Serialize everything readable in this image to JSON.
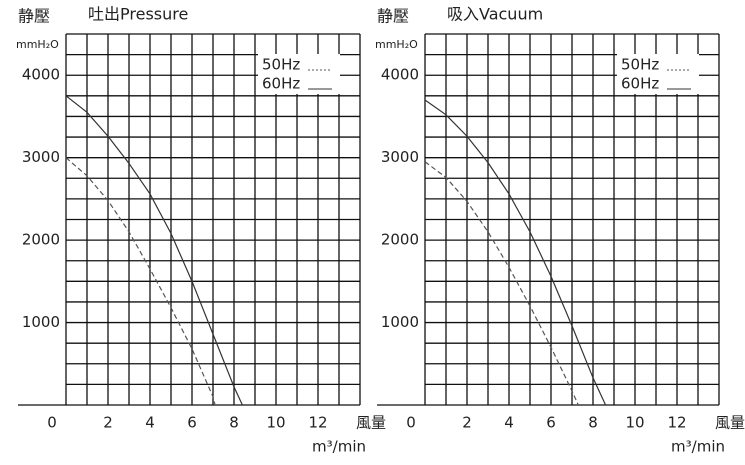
{
  "chart_data": [
    {
      "type": "line",
      "y_label": "静壓",
      "title": "吐出Pressure",
      "y_unit": "mmH₂O",
      "x_label": "風量",
      "x_unit": "m³/min",
      "xlim": [
        0,
        14
      ],
      "ylim": [
        0,
        4500
      ],
      "xticks": [
        0,
        2,
        4,
        6,
        8,
        10,
        12
      ],
      "yticks": [
        1000,
        2000,
        3000,
        4000
      ],
      "xgrid": [
        0,
        1,
        2,
        3,
        4,
        5,
        6,
        7,
        8,
        9,
        10,
        11,
        12,
        13,
        14
      ],
      "ygrid": [
        0,
        250,
        500,
        750,
        1000,
        1250,
        1500,
        1750,
        2000,
        2250,
        2500,
        2750,
        3000,
        3250,
        3500,
        3750,
        4000,
        4250,
        4500
      ],
      "legend": "upper right",
      "series": [
        {
          "name": "50Hz",
          "color": "#555555",
          "dash": true,
          "x": [
            0,
            1,
            2,
            3,
            4,
            5,
            6,
            7,
            7.1
          ],
          "values": [
            3000,
            2780,
            2480,
            2100,
            1650,
            1180,
            680,
            100,
            0
          ]
        },
        {
          "name": "60Hz",
          "color": "#333333",
          "dash": false,
          "x": [
            0,
            1,
            2,
            3,
            4,
            5,
            6,
            7,
            8,
            8.4
          ],
          "values": [
            3750,
            3550,
            3260,
            2930,
            2560,
            2080,
            1500,
            860,
            220,
            0
          ]
        }
      ]
    },
    {
      "type": "line",
      "y_label": "静壓",
      "title": "吸入Vacuum",
      "y_unit": "mmH₂O",
      "x_label": "風量",
      "x_unit": "m³/min",
      "xlim": [
        0,
        14
      ],
      "ylim": [
        0,
        4500
      ],
      "xticks": [
        0,
        2,
        4,
        6,
        8,
        10,
        12
      ],
      "yticks": [
        1000,
        2000,
        3000,
        4000
      ],
      "xgrid": [
        0,
        1,
        2,
        3,
        4,
        5,
        6,
        7,
        8,
        9,
        10,
        11,
        12,
        13,
        14
      ],
      "ygrid": [
        0,
        250,
        500,
        750,
        1000,
        1250,
        1500,
        1750,
        2000,
        2250,
        2500,
        2750,
        3000,
        3250,
        3500,
        3750,
        4000,
        4250,
        4500
      ],
      "legend": "upper right",
      "series": [
        {
          "name": "50Hz",
          "color": "#555555",
          "dash": true,
          "x": [
            0,
            1,
            2,
            3,
            4,
            5,
            6,
            7,
            7.3
          ],
          "values": [
            2950,
            2760,
            2470,
            2100,
            1670,
            1200,
            700,
            170,
            0
          ]
        },
        {
          "name": "60Hz",
          "color": "#333333",
          "dash": false,
          "x": [
            0,
            1,
            2,
            3,
            4,
            5,
            6,
            7,
            8,
            8.6
          ],
          "values": [
            3700,
            3520,
            3260,
            2940,
            2560,
            2100,
            1560,
            960,
            330,
            0
          ]
        }
      ]
    }
  ]
}
